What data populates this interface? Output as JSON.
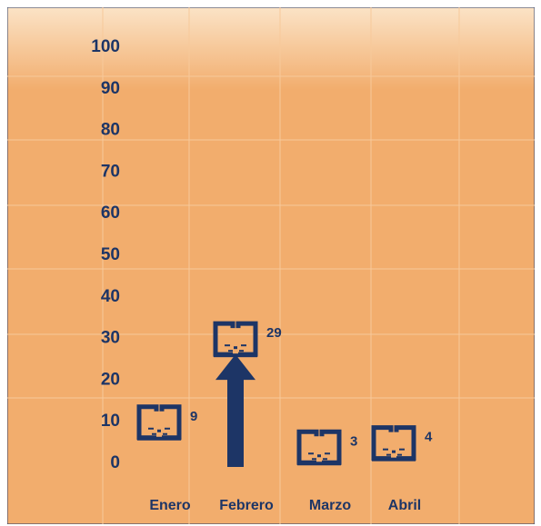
{
  "chart_data": {
    "type": "scatter",
    "title": "",
    "xlabel": "",
    "ylabel": "",
    "categories": [
      "Enero",
      "Febrero",
      "Marzo",
      "Abril"
    ],
    "values": [
      9,
      29,
      3,
      4
    ],
    "data_labels": [
      "9",
      "29",
      "3",
      "4"
    ],
    "yticks": [
      "0",
      "10",
      "20",
      "30",
      "40",
      "50",
      "60",
      "70",
      "80",
      "90",
      "100"
    ],
    "ylim": [
      0,
      100
    ],
    "grid": true,
    "marker": "book-icon",
    "annotation": {
      "type": "arrow-up",
      "category": "Febrero"
    },
    "colors": {
      "background_top": "#fbe3c6",
      "background": "#f2ad6d",
      "ink": "#1d3566",
      "grid": "#f7c99a"
    }
  }
}
